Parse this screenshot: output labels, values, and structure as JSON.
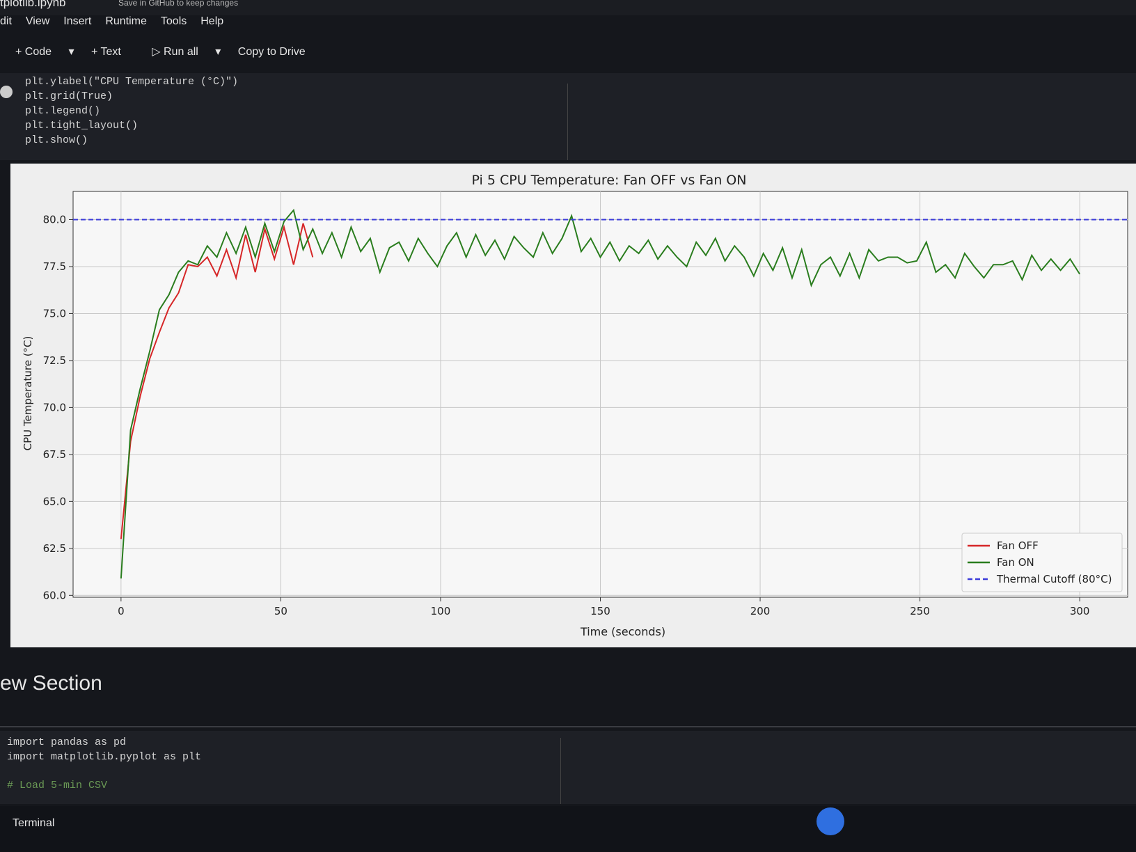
{
  "header": {
    "filename": "tplotlib.ipynb",
    "save_note": "Save in GitHub to keep changes"
  },
  "menu": [
    "dit",
    "View",
    "Insert",
    "Runtime",
    "Tools",
    "Help"
  ],
  "toolbar": [
    "Code",
    "Text",
    "Run all",
    "Copy to Drive"
  ],
  "code_cell": [
    "plt.ylabel(\"CPU Temperature (°C)\")",
    "plt.grid(True)",
    "plt.legend()",
    "plt.tight_layout()",
    "plt.show()"
  ],
  "chart_data": {
    "type": "line",
    "title": "Pi 5 CPU Temperature: Fan OFF vs Fan ON",
    "x_label": "Time (seconds)",
    "y_label": "CPU Temperature (°C)",
    "series": [
      {
        "name": "Fan OFF",
        "color": "#d62728",
        "x": [
          0,
          3,
          6,
          9,
          12,
          15,
          18,
          21,
          24,
          27,
          30,
          33,
          36,
          39,
          42,
          45,
          48,
          51,
          54,
          57,
          60
        ],
        "values": [
          63.0,
          68.2,
          70.6,
          72.6,
          74.0,
          75.3,
          76.1,
          77.6,
          77.5,
          78.0,
          77.0,
          78.4,
          76.9,
          79.2,
          77.2,
          79.5,
          77.9,
          79.6,
          77.6,
          79.8,
          78.0
        ]
      },
      {
        "name": "Fan ON",
        "color": "#2a7d1e",
        "x": [
          0,
          3,
          6,
          9,
          12,
          15,
          18,
          21,
          24,
          27,
          30,
          33,
          36,
          39,
          42,
          45,
          48,
          51,
          54,
          57,
          60,
          63,
          66,
          69,
          72,
          75,
          78,
          81,
          84,
          87,
          90,
          93,
          96,
          99,
          102,
          105,
          108,
          111,
          114,
          117,
          120,
          123,
          126,
          129,
          132,
          135,
          138,
          141,
          144,
          147,
          150,
          153,
          156,
          159,
          162,
          165,
          168,
          171,
          174,
          177,
          180,
          183,
          186,
          189,
          192,
          195,
          198,
          201,
          204,
          207,
          210,
          213,
          216,
          219,
          222,
          225,
          228,
          231,
          234,
          237,
          240,
          243,
          246,
          249,
          252,
          255,
          258,
          261,
          264,
          267,
          270,
          273,
          276,
          279,
          282,
          285,
          288,
          291,
          294,
          297,
          300
        ],
        "values": [
          60.9,
          68.8,
          71.0,
          73.0,
          75.2,
          76.0,
          77.2,
          77.8,
          77.6,
          78.6,
          78.0,
          79.3,
          78.2,
          79.6,
          78.0,
          79.8,
          78.3,
          79.9,
          80.5,
          78.4,
          79.5,
          78.2,
          79.3,
          78.0,
          79.6,
          78.3,
          79.0,
          77.2,
          78.5,
          78.8,
          77.8,
          79.0,
          78.2,
          77.5,
          78.6,
          79.3,
          78.0,
          79.2,
          78.1,
          78.9,
          77.9,
          79.1,
          78.5,
          78.0,
          79.3,
          78.2,
          79.0,
          80.2,
          78.3,
          79.0,
          78.0,
          78.8,
          77.8,
          78.6,
          78.2,
          78.9,
          77.9,
          78.6,
          78.0,
          77.5,
          78.8,
          78.1,
          79.0,
          77.8,
          78.6,
          78.0,
          77.0,
          78.2,
          77.3,
          78.5,
          76.9,
          78.4,
          76.5,
          77.6,
          78.0,
          77.0,
          78.2,
          76.9,
          78.4,
          77.8,
          78.0,
          78.0,
          77.7,
          77.8,
          78.8,
          77.2,
          77.6,
          76.9,
          78.2,
          77.5,
          76.9,
          77.6,
          77.6,
          77.8,
          76.8,
          78.1,
          77.3,
          77.9,
          77.3,
          77.9,
          77.1
        ]
      }
    ],
    "hlines": [
      {
        "name": "Thermal Cutoff (80°C)",
        "value": 80,
        "color": "#3b3bd9",
        "linestyle": "dashed"
      }
    ],
    "xlim": [
      -15,
      315
    ],
    "xticks": [
      0,
      50,
      100,
      150,
      200,
      250,
      300
    ],
    "ylim": [
      59.9,
      81.5
    ],
    "yticks": [
      {
        "value": 60,
        "label": "60.0"
      },
      62.5,
      {
        "value": 65,
        "label": "65.0"
      },
      67.5,
      {
        "value": 70,
        "label": "70.0"
      },
      72.5,
      {
        "value": 75,
        "label": "75.0"
      },
      77.5,
      {
        "value": 80,
        "label": "80.0"
      }
    ],
    "grid": true,
    "legend": "lower right"
  },
  "section": {
    "title": "ew Section"
  },
  "code_cell_2": [
    "import pandas as pd",
    "import matplotlib.pyplot as plt",
    "# Load 5-min CSV"
  ],
  "footer": {
    "terminal": "Terminal"
  }
}
